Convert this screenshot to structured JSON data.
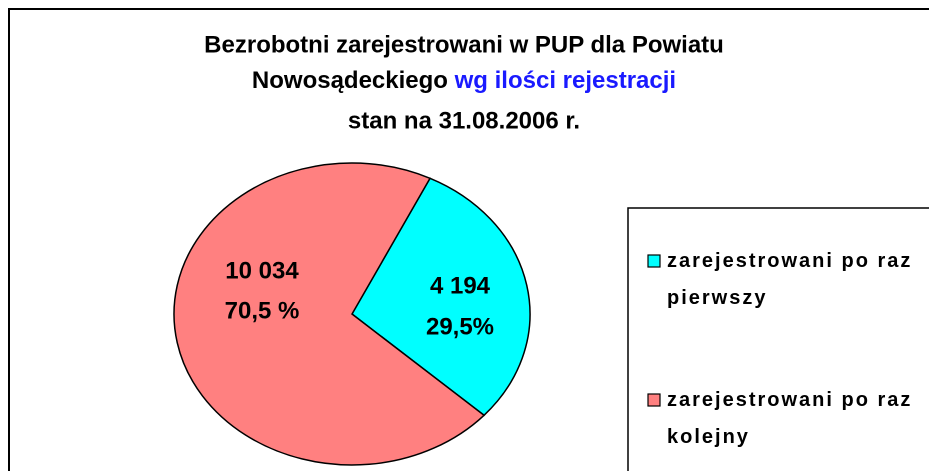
{
  "chart_data": {
    "type": "pie",
    "title_lines": [
      "Bezrobotni zarejestrowani w PUP dla Powiatu",
      "Nowosądeckiego ",
      "wg ilości rejestracji",
      "stan na 31.08.2006 r."
    ],
    "categories": [
      "zarejestrowani po raz pierwszy",
      "zarejestrowani po raz kolejny"
    ],
    "values": [
      4194,
      10034
    ],
    "value_labels": [
      "4 194",
      "10 034"
    ],
    "percent_labels": [
      "29,5%",
      "70,5 %"
    ],
    "colors": [
      "#00ffff",
      "#ff8080"
    ],
    "legend": "right"
  }
}
